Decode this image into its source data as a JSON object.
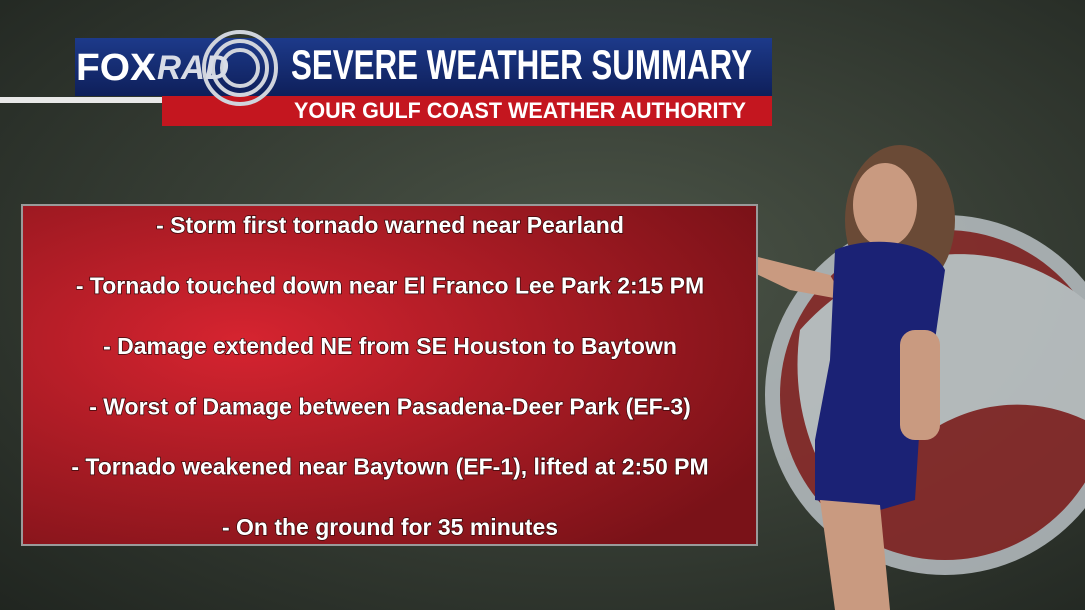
{
  "logo": {
    "fox": "FOX",
    "rad": "RAD"
  },
  "header": {
    "title": "SEVERE WEATHER SUMMARY",
    "subtitle": "YOUR GULF COAST WEATHER AUTHORITY"
  },
  "bullets": [
    "- Storm first tornado warned near Pearland",
    "- Tornado touched down near El Franco Lee Park 2:15 PM",
    "- Damage extended NE from SE Houston to Baytown",
    "- Worst of Damage between Pasadena-Deer Park (EF-3)",
    "- Tornado weakened near Baytown (EF-1), lifted at 2:50 PM",
    "- On the ground for 35 minutes"
  ]
}
